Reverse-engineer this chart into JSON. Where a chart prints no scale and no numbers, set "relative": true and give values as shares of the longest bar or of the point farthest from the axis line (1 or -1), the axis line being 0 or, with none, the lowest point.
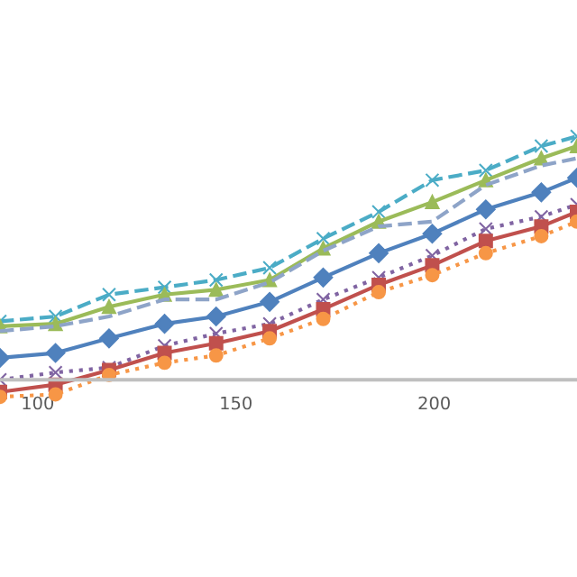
{
  "chart_data": {
    "type": "line",
    "relative": true,
    "x": [
      90.5,
      104.5,
      118,
      132,
      145,
      158.5,
      172,
      186,
      199.5,
      213,
      227,
      236
    ],
    "xlim": [
      90.5,
      236
    ],
    "xticks": [
      100,
      150,
      200
    ],
    "grid": false,
    "legend": false,
    "series": [
      {
        "color": "#4bacc6",
        "marker": "cross",
        "line_style": "dashed",
        "values": [
          0.24,
          0.26,
          0.35,
          0.38,
          0.41,
          0.46,
          0.58,
          0.69,
          0.82,
          0.86,
          0.96,
          1
        ]
      },
      {
        "color": "#9bbb59",
        "marker": "triangle",
        "line_style": "solid",
        "values": [
          0.22,
          0.23,
          0.3,
          0.35,
          0.37,
          0.41,
          0.54,
          0.65,
          0.73,
          0.82,
          0.91,
          0.96
        ]
      },
      {
        "color": "#8ea4c8",
        "marker": "none",
        "line_style": "dashed",
        "values": [
          0.2,
          0.22,
          0.26,
          0.33,
          0.33,
          0.4,
          0.53,
          0.63,
          0.65,
          0.8,
          0.88,
          0.91
        ]
      },
      {
        "color": "#4f81bd",
        "marker": "diamond",
        "line_style": "solid",
        "values": [
          0.09,
          0.11,
          0.17,
          0.23,
          0.26,
          0.32,
          0.42,
          0.52,
          0.6,
          0.7,
          0.77,
          0.83
        ]
      },
      {
        "color": "#8064a2",
        "marker": "cross",
        "line_style": "dotted",
        "values": [
          0.0,
          0.03,
          0.05,
          0.14,
          0.19,
          0.23,
          0.33,
          0.42,
          0.51,
          0.62,
          0.67,
          0.72
        ]
      },
      {
        "color": "#c0504d",
        "marker": "square",
        "line_style": "solid",
        "values": [
          -0.05,
          -0.02,
          0.04,
          0.11,
          0.15,
          0.2,
          0.29,
          0.39,
          0.47,
          0.57,
          0.63,
          0.69
        ]
      },
      {
        "color": "#f79646",
        "marker": "circle",
        "line_style": "dotted",
        "values": [
          -0.07,
          -0.06,
          0.02,
          0.07,
          0.1,
          0.17,
          0.25,
          0.36,
          0.43,
          0.52,
          0.59,
          0.65
        ]
      }
    ]
  }
}
